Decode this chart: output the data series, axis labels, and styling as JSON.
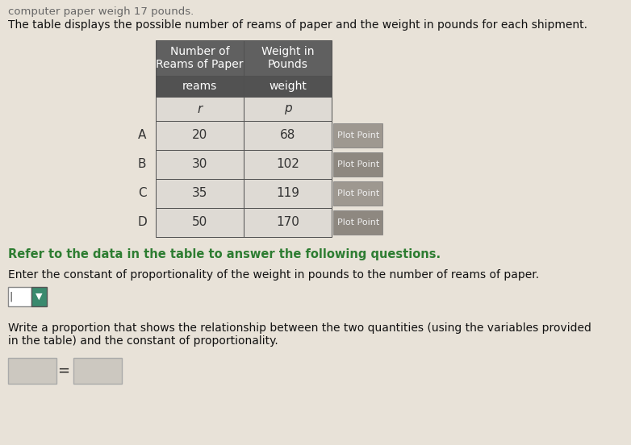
{
  "background_color": "#e8e2d8",
  "top_text": "computer paper weigh 17 pounds.",
  "intro_text": "The table displays the possible number of reams of paper and the weight in pounds for each shipment.",
  "col1_header": "Number of\nReams of Paper",
  "col2_header": "Weight in\nPounds",
  "col1_sub": "reams",
  "col2_sub": "weight",
  "col1_var": "r",
  "col2_var": "p",
  "rows": [
    {
      "label": "A",
      "r": "20",
      "p": "68"
    },
    {
      "label": "B",
      "r": "30",
      "p": "102"
    },
    {
      "label": "C",
      "r": "35",
      "p": "119"
    },
    {
      "label": "D",
      "r": "50",
      "p": "170"
    }
  ],
  "plot_point_colors": [
    "#9e9890",
    "#8e8880",
    "#9e9890",
    "#8e8880"
  ],
  "refer_text": "Refer to the data in the table to answer the following questions.",
  "enter_text": "Enter the constant of proportionality of the weight in pounds to the number of reams of paper.",
  "write_text": "Write a proportion that shows the relationship between the two quantities (using the variables provided\nin the table) and the constant of proportionality.",
  "table_header_bg": "#606060",
  "table_sub_bg": "#525252",
  "table_var_bg": "#dedad4",
  "table_data_bg": "#dedad4",
  "table_data_bg_alt": "#d4d0ca",
  "header_text_color": "#ffffff",
  "data_text_color": "#333333",
  "refer_text_color": "#2e7d32",
  "body_text_color": "#111111",
  "input_box_color": "#ffffff",
  "dropdown_color": "#3a8a6e",
  "proportion_box_color": "#ccc8c0"
}
